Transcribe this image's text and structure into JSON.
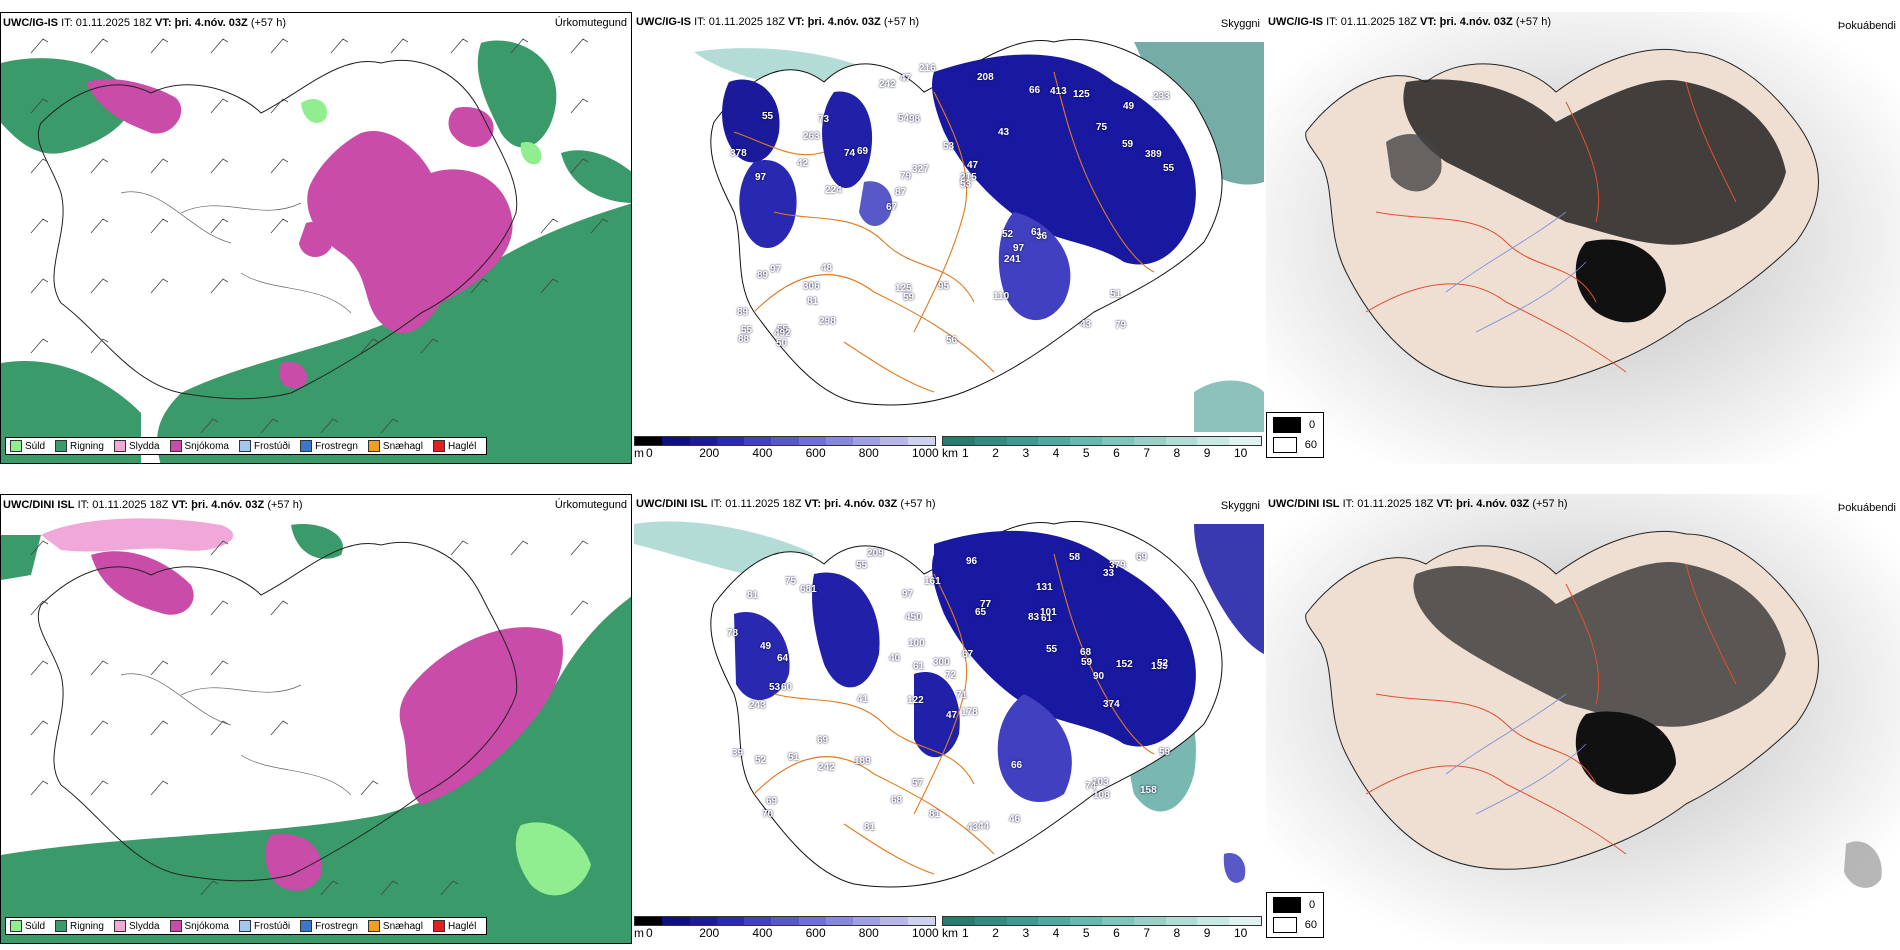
{
  "panels": [
    {
      "id": "p1",
      "model": "UWC/IG-IS",
      "it": "IT: 01.11.2025 18Z",
      "vt": "VT: þri. 4.nóv. 03Z",
      "lead": "(+57 h)",
      "variable": "Úrkomutegund"
    },
    {
      "id": "p2",
      "model": "UWC/IG-IS",
      "it": "IT: 01.11.2025 18Z",
      "vt": "VT: þri. 4.nóv. 03Z",
      "lead": "(+57 h)",
      "variable": "Skyggni"
    },
    {
      "id": "p3",
      "model": "UWC/IG-IS",
      "it": "IT: 01.11.2025 18Z",
      "vt": "VT: þri. 4.nóv. 03Z",
      "lead": "(+57 h)",
      "variable": "Þokuábendi"
    },
    {
      "id": "p4",
      "model": "UWC/DINI ISL",
      "it": "IT: 01.11.2025 18Z",
      "vt": "VT: þri. 4.nóv. 03Z",
      "lead": "(+57 h)",
      "variable": "Úrkomutegund"
    },
    {
      "id": "p5",
      "model": "UWC/DINI ISL",
      "it": "IT: 01.11.2025 18Z",
      "vt": "VT: þri. 4.nóv. 03Z",
      "lead": "(+57 h)",
      "variable": "Skyggni"
    },
    {
      "id": "p6",
      "model": "UWC/DINI ISL",
      "it": "IT: 01.11.2025 18Z",
      "vt": "VT: þri. 4.nóv. 03Z",
      "lead": "(+57 h)",
      "variable": "Þokuábendi"
    }
  ],
  "precip_legend": [
    {
      "label": "Súld",
      "color": "#90ee90"
    },
    {
      "label": "Rigning",
      "color": "#3a9a6a"
    },
    {
      "label": "Slydda",
      "color": "#f0a8d8"
    },
    {
      "label": "Snjókoma",
      "color": "#c84ca8"
    },
    {
      "label": "Frostúði",
      "color": "#a0c8f0"
    },
    {
      "label": "Frostregn",
      "color": "#3a78c8"
    },
    {
      "label": "Snæhagl",
      "color": "#f0a020"
    },
    {
      "label": "Haglél",
      "color": "#e02020"
    }
  ],
  "ceiling_scale": {
    "unit": "m",
    "ticks": [
      "0",
      "200",
      "400",
      "600",
      "800",
      "1000"
    ],
    "colors": [
      "#000000",
      "#10107a",
      "#1a1a9a",
      "#2828b0",
      "#4040c0",
      "#5858c8",
      "#7070d0",
      "#8888d8",
      "#a0a0e0",
      "#b8b8e8",
      "#d0d0f0"
    ]
  },
  "vis_scale": {
    "unit": "km",
    "ticks": [
      "1",
      "2",
      "3",
      "4",
      "5",
      "6",
      "7",
      "8",
      "9",
      "10"
    ],
    "colors": [
      "#2a7a70",
      "#358a80",
      "#409890",
      "#50a8a0",
      "#68b8b0",
      "#80c4bc",
      "#98d0c8",
      "#b0dcd6",
      "#c8e8e2",
      "#e0f2ef"
    ]
  },
  "fog_legend": [
    {
      "value": "0",
      "color": "#000000"
    },
    {
      "value": "60",
      "color": "#ffffff"
    }
  ],
  "ceiling_labels_top": [
    "79",
    "97",
    "49",
    "67",
    "43",
    "55",
    "54",
    "53",
    "97",
    "69",
    "89",
    "81",
    "98",
    "47",
    "36",
    "55",
    "47",
    "55",
    "52",
    "59",
    "87",
    "125",
    "79",
    "73",
    "66",
    "48",
    "43",
    "51",
    "61",
    "56",
    "74",
    "42",
    "241",
    "298",
    "389",
    "215",
    "55",
    "59",
    "53",
    "89",
    "75",
    "233",
    "97",
    "110",
    "306",
    "50",
    "88",
    "95",
    "125",
    "216",
    "224",
    "378",
    "263",
    "413",
    "492",
    "208",
    "242",
    "327"
  ],
  "ceiling_labels_bottom": [
    "209",
    "131",
    "133",
    "122",
    "178",
    "60",
    "81",
    "83",
    "243",
    "65",
    "72",
    "70",
    "55",
    "41",
    "43",
    "44",
    "57",
    "58",
    "55",
    "69",
    "64",
    "53",
    "52",
    "152",
    "39",
    "49",
    "61",
    "59",
    "103",
    "52",
    "74",
    "77",
    "51",
    "40",
    "66",
    "59",
    "68",
    "68",
    "69",
    "161",
    "69",
    "81",
    "46",
    "75",
    "81",
    "61",
    "108",
    "101",
    "78",
    "71",
    "97",
    "90",
    "67",
    "33",
    "96",
    "242",
    "100",
    "300",
    "379",
    "450",
    "158",
    "374",
    "681",
    "189",
    "47"
  ]
}
